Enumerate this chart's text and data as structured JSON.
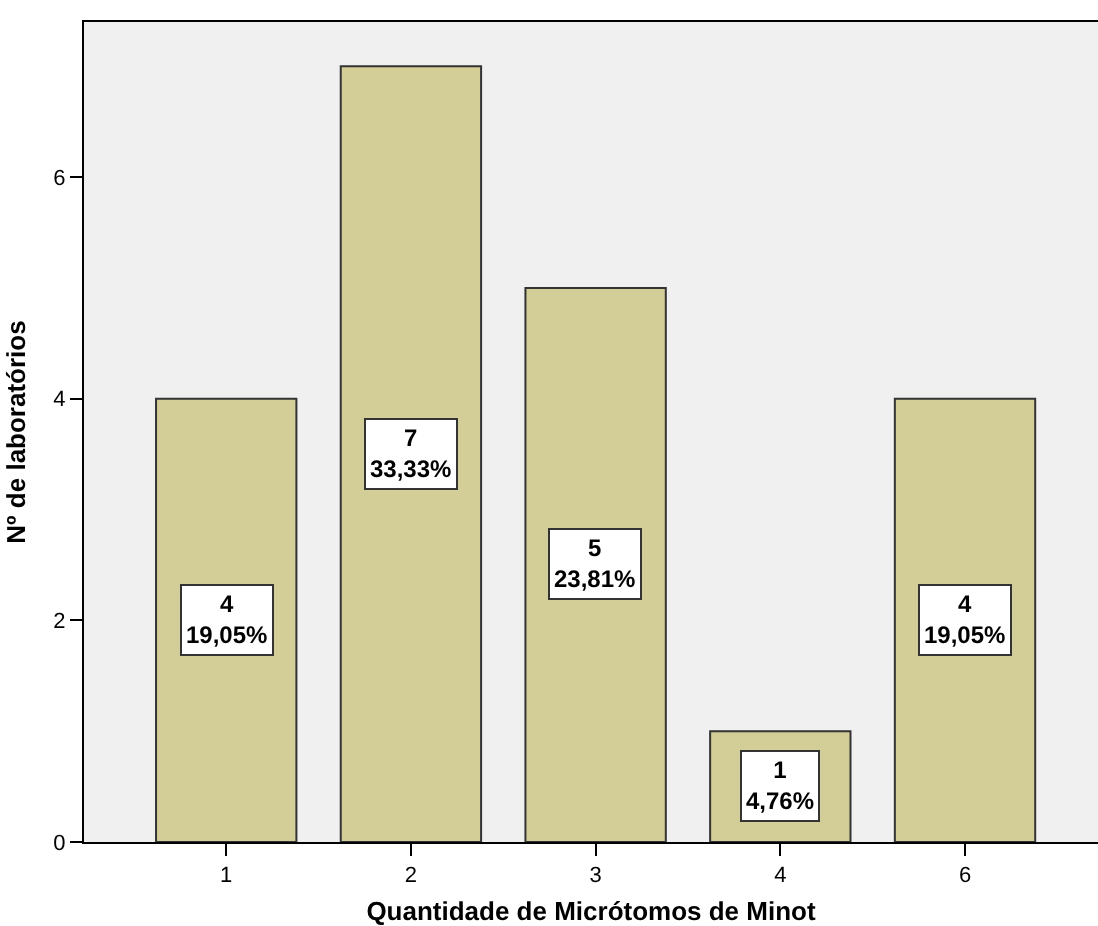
{
  "chart_data": {
    "type": "bar",
    "xlabel": "Quantidade de Micrótomos de Minot",
    "ylabel": "Nº de laboratórios",
    "categories": [
      "1",
      "2",
      "3",
      "4",
      "6"
    ],
    "values": [
      4,
      7,
      5,
      1,
      4
    ],
    "value_labels": [
      "4\n19,05%",
      "7\n33,33%",
      "5\n23,81%",
      "1\n4,76%",
      "4\n19,05%"
    ],
    "color": "#d3ce97",
    "ylim": [
      0,
      7.4
    ],
    "yticks": [
      0,
      2,
      4,
      6
    ]
  }
}
